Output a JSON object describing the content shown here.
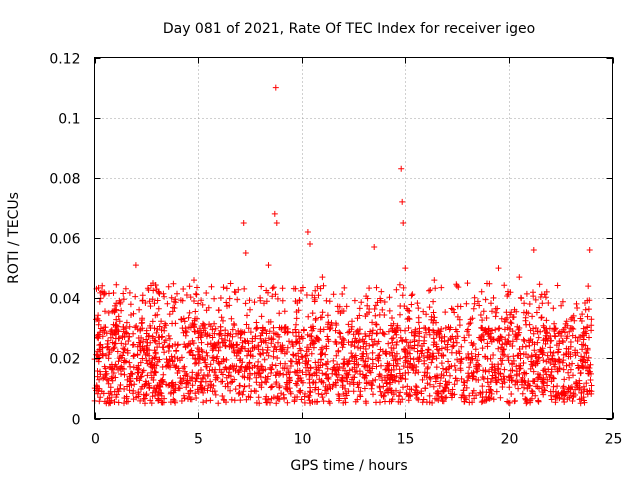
{
  "chart_data": {
    "type": "scatter",
    "title": "Day 081 of 2021, Rate Of TEC Index for receiver igeo",
    "xlabel": "GPS time / hours",
    "ylabel": "ROTI / TECUs",
    "xlim": [
      0,
      25
    ],
    "ylim": [
      0,
      0.12
    ],
    "x_ticks": [
      0,
      5,
      10,
      15,
      20,
      25
    ],
    "x_tick_labels": [
      "0",
      "5",
      "10",
      "15",
      "20",
      "25"
    ],
    "y_ticks": [
      0,
      0.02,
      0.04,
      0.06,
      0.08,
      0.1,
      0.12
    ],
    "y_tick_labels": [
      "0",
      "0.02",
      "0.04",
      "0.06",
      "0.08",
      "0.1",
      "0.12"
    ],
    "grid": true,
    "marker": "plus",
    "color": "#ff0000",
    "data_summary": {
      "x_range": [
        0,
        24
      ],
      "baseline_range": [
        0.005,
        0.03
      ],
      "typical_peak": 0.045
    },
    "series": [
      {
        "name": "ROTI",
        "x": [
          0.3,
          2.0,
          3.0,
          4.8,
          7.2,
          7.3,
          8.4,
          8.7,
          8.75,
          8.8,
          10.3,
          10.4,
          11.0,
          13.5,
          14.8,
          14.85,
          14.9,
          15.0,
          16.4,
          18.0,
          19.5,
          20.5,
          21.2,
          23.9
        ],
        "y": [
          0.04,
          0.051,
          0.043,
          0.046,
          0.065,
          0.055,
          0.051,
          0.068,
          0.11,
          0.065,
          0.062,
          0.058,
          0.047,
          0.057,
          0.083,
          0.072,
          0.065,
          0.05,
          0.046,
          0.045,
          0.05,
          0.047,
          0.056,
          0.056
        ]
      }
    ]
  }
}
